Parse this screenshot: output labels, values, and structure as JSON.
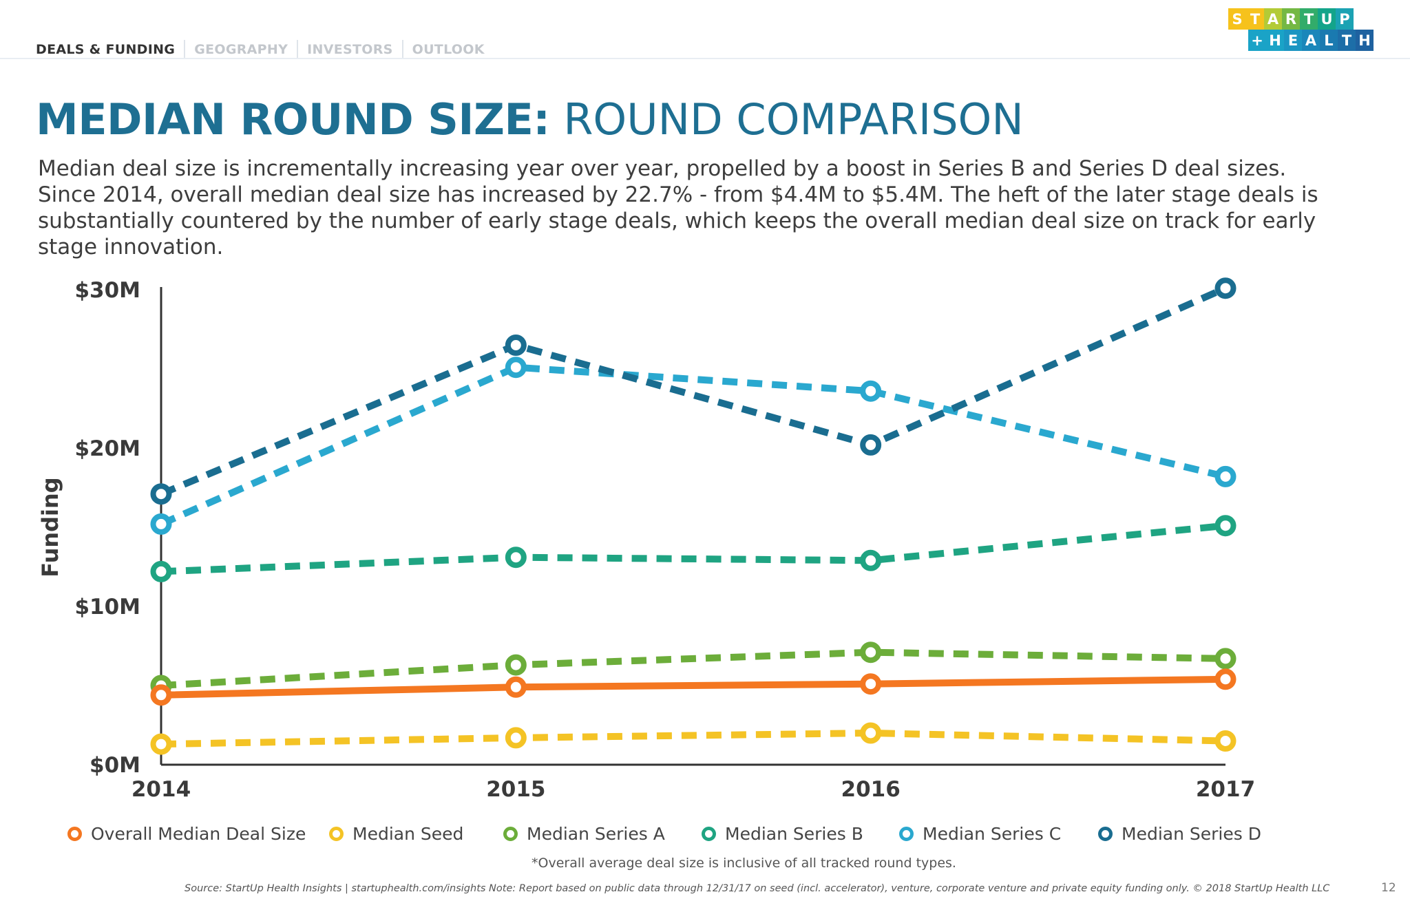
{
  "nav": {
    "tabs": [
      {
        "label": "DEALS & FUNDING",
        "active": true
      },
      {
        "label": "GEOGRAPHY",
        "active": false
      },
      {
        "label": "INVESTORS",
        "active": false
      },
      {
        "label": "OUTLOOK",
        "active": false
      }
    ]
  },
  "logo": {
    "row1": [
      "S",
      "T",
      "A",
      "R",
      "T",
      "U",
      "P"
    ],
    "row2": [
      "+",
      "H",
      "E",
      "A",
      "L",
      "T",
      "H"
    ],
    "row1_colors": [
      "#f6c21c",
      "#f6c21c",
      "#b3cb36",
      "#74b844",
      "#32ac6a",
      "#13a48a",
      "#1ba2b3"
    ],
    "row2_colors": [
      "#1aa3c7",
      "#1aa3c7",
      "#1b95c2",
      "#1a87ba",
      "#1a7ab0",
      "#1d6ea8",
      "#1f62a0"
    ]
  },
  "title": {
    "bold": "MEDIAN ROUND SIZE:",
    "light": " ROUND COMPARISON"
  },
  "description": "Median deal size is incrementally increasing year over year, propelled by a boost in Series B and Series D deal sizes. Since 2014, overall median deal size has increased by 22.7% - from $4.4M to $5.4M. The heft of the later stage deals is substantially countered by the number of early stage deals, which keeps the overall median deal size on track for early stage innovation.",
  "chart_data": {
    "type": "line",
    "ylabel": "Funding",
    "x": [
      "2014",
      "2015",
      "2016",
      "2017"
    ],
    "ylim": [
      0,
      30
    ],
    "yticks": [
      {
        "value": 30,
        "label": "$30M"
      },
      {
        "value": 20,
        "label": "$20M"
      },
      {
        "value": 10,
        "label": "$10M"
      },
      {
        "value": 0,
        "label": "$0M"
      }
    ],
    "grid": false,
    "legend_position": "bottom",
    "series": [
      {
        "name": "Median Seed",
        "color": "#f4c325",
        "dashed": true,
        "values": [
          1.3,
          1.7,
          2.0,
          1.5
        ]
      },
      {
        "name": "Median Series A",
        "color": "#6cad3a",
        "dashed": true,
        "values": [
          5.0,
          6.3,
          7.1,
          6.7
        ]
      },
      {
        "name": "Median Series B",
        "color": "#1fa482",
        "dashed": true,
        "values": [
          12.2,
          13.1,
          12.9,
          15.1
        ]
      },
      {
        "name": "Median Series C",
        "color": "#2aa8cf",
        "dashed": true,
        "values": [
          15.2,
          25.1,
          23.6,
          18.2
        ]
      },
      {
        "name": "Median Series D",
        "color": "#1a6d90",
        "dashed": true,
        "values": [
          17.1,
          26.5,
          20.2,
          30.1
        ]
      },
      {
        "name": "Overall Median Deal Size",
        "color": "#f47721",
        "dashed": false,
        "values": [
          4.4,
          4.9,
          5.1,
          5.4
        ]
      }
    ]
  },
  "legend": {
    "items": [
      {
        "label": "Overall Median Deal Size",
        "color": "#f47721"
      },
      {
        "label": "Median Seed",
        "color": "#f4c325"
      },
      {
        "label": "Median Series A",
        "color": "#6cad3a"
      },
      {
        "label": "Median Series B",
        "color": "#1fa482"
      },
      {
        "label": "Median Series C",
        "color": "#2aa8cf"
      },
      {
        "label": "Median Series D",
        "color": "#1a6d90"
      }
    ]
  },
  "footnote": "*Overall average deal size is inclusive of all tracked round types.",
  "source": "Source: StartUp Health Insights | startuphealth.com/insights Note: Report based on public data through 12/31/17 on seed (incl. accelerator), venture, corporate venture and private equity funding only. © 2018 StartUp Health LLC",
  "page_number": "12"
}
